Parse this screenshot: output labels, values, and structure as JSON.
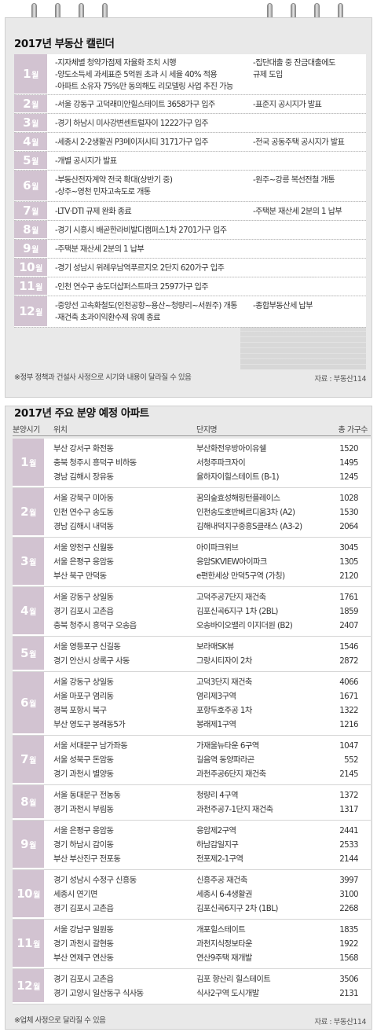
{
  "calendar": {
    "title": "2017년 부동산 캘린더",
    "month_suffix": "월",
    "rows": [
      {
        "month": "1",
        "left": [
          "-지자체별 청약가점제 자율화 조치 시행",
          "-양도소득세 과세표준 5억원 초과 시 세율 40% 적용",
          "-아파트 소유자 75%만 동의해도 리모델링 사업 추진 가능"
        ],
        "right": [
          "-집단대출 중 잔금대출에도",
          "규제 도입"
        ]
      },
      {
        "month": "2",
        "left": [
          "-서울 강동구 고덕래미안힐스테이트 3658가구 입주"
        ],
        "right": [
          "-표준지 공시지가 발표"
        ]
      },
      {
        "month": "3",
        "left": [
          "-경기 하남시 미사강변센트럴자이 1222가구 입주"
        ],
        "right": []
      },
      {
        "month": "4",
        "left": [
          "-세종시 2-2생활권 P3메이저시티 3171가구 입주"
        ],
        "right": [
          "-전국 공동주택 공시지가 발표"
        ]
      },
      {
        "month": "5",
        "left": [
          "-개별 공시지가 발표"
        ],
        "right": []
      },
      {
        "month": "6",
        "left": [
          "-부동산전자계약 전국 확대(상반기 중)",
          "-상주~영천 민자고속도로 개통"
        ],
        "right": [
          "-원주~강릉 복선전철 개통"
        ]
      },
      {
        "month": "7",
        "left": [
          "-LTV·DTI 규제 완화 종료"
        ],
        "right": [
          "-주택분 재산세 2분의 1 납부"
        ]
      },
      {
        "month": "8",
        "left": [
          "-경기 시흥시 배곧한라비발디캠퍼스1차 2701가구 입주"
        ],
        "right": []
      },
      {
        "month": "9",
        "left": [
          "-주택분 재산세 2분의 1 납부"
        ],
        "right": []
      },
      {
        "month": "10",
        "left": [
          "-경기 성남시 위례우남역푸르지오 2단지 620가구 입주"
        ],
        "right": []
      },
      {
        "month": "11",
        "left": [
          "-인천 연수구 송도더샵퍼스트파크 2597가구 입주"
        ],
        "right": []
      },
      {
        "month": "12",
        "left": [
          "-중앙선 고속화철도(인천공항~용산~청량리~서원주) 개통",
          "-재건축 초과이익환수제 유예 종료"
        ],
        "right": [
          "-종합부동산세 납부"
        ]
      }
    ],
    "footnote": "※정부 정책과 건설사 사정으로 시기와 내용이 달라질 수 있음",
    "source": "자료 : 부동산114"
  },
  "apartments": {
    "title": "2017년 주요 분양 예정 아파트",
    "headers": {
      "period": "분양시기",
      "location": "위치",
      "complex": "단지명",
      "units": "총 가구수"
    },
    "month_suffix": "월",
    "groups": [
      {
        "month": "1",
        "rows": [
          {
            "loc": "부산 강서구 화전동",
            "name": "부산화전우방아이유쉘",
            "units": "1520"
          },
          {
            "loc": "충북 청주시 흥덕구 비하동",
            "name": "서청주파크자이",
            "units": "1495"
          },
          {
            "loc": "경남 김해시 장유동",
            "name": "율하자이힐스테이트 (B-1)",
            "units": "1245"
          }
        ]
      },
      {
        "month": "2",
        "rows": [
          {
            "loc": "서울 강북구 미아동",
            "name": "꿈의숲효성해링턴플레이스",
            "units": "1028"
          },
          {
            "loc": "인천 연수구 송도동",
            "name": "인천송도호반베르디움3차 (A2)",
            "units": "1530"
          },
          {
            "loc": "경남 김해시 내덕동",
            "name": "김해내덕지구중흥S클래스 (A3-2)",
            "units": "2064"
          }
        ]
      },
      {
        "month": "3",
        "rows": [
          {
            "loc": "서울 양천구 신월동",
            "name": "아이파크위브",
            "units": "3045"
          },
          {
            "loc": "서울 은평구 응암동",
            "name": "응암SKVIEW아이파크",
            "units": "1305"
          },
          {
            "loc": "부산 북구 만덕동",
            "name": "e편한세상 만덕5구역 (가칭)",
            "units": "2120"
          }
        ]
      },
      {
        "month": "4",
        "rows": [
          {
            "loc": "서울 강동구 상일동",
            "name": "고덕주공7단지 재건축",
            "units": "1761"
          },
          {
            "loc": "경기 김포시 고촌읍",
            "name": "김포신곡6지구 1차 (2BL)",
            "units": "1859"
          },
          {
            "loc": "충북 청주시 흥덕구 오송읍",
            "name": "오송바이오밸리 이지더원 (B2)",
            "units": "2407"
          }
        ]
      },
      {
        "month": "5",
        "rows": [
          {
            "loc": "서울 영등포구 신길동",
            "name": "보라매SK뷰",
            "units": "1546"
          },
          {
            "loc": "경기 안산시 상록구 사동",
            "name": "그랑시티자이 2차",
            "units": "2872"
          }
        ]
      },
      {
        "month": "6",
        "rows": [
          {
            "loc": "서울 강동구 상일동",
            "name": "고덕3단지 재건축",
            "units": "4066"
          },
          {
            "loc": "서울 마포구 염리동",
            "name": "염리제3구역",
            "units": "1671"
          },
          {
            "loc": "경북 포항시 북구",
            "name": "포항두호주공 1차",
            "units": "1322"
          },
          {
            "loc": "부산 영도구 봉래동5가",
            "name": "봉래제1구역",
            "units": "1216"
          }
        ]
      },
      {
        "month": "7",
        "rows": [
          {
            "loc": "서울 서대문구 남가좌동",
            "name": "가재울뉴타운 6구역",
            "units": "1047"
          },
          {
            "loc": "서울 성북구 돈암동",
            "name": "길음역 동양파라곤",
            "units": "552"
          },
          {
            "loc": "경기 과천시 별양동",
            "name": "과천주공6단지 재건축",
            "units": "2145"
          }
        ]
      },
      {
        "month": "8",
        "rows": [
          {
            "loc": "서울 동대문구 전농동",
            "name": "청량리 4구역",
            "units": "1372"
          },
          {
            "loc": "경기 과천시 부림동",
            "name": "과천주공7-1단지 재건축",
            "units": "1317"
          }
        ]
      },
      {
        "month": "9",
        "rows": [
          {
            "loc": "서울 은평구 응암동",
            "name": "응암제2구역",
            "units": "2441"
          },
          {
            "loc": "경기 하남시 감이동",
            "name": "하남감일지구",
            "units": "2533"
          },
          {
            "loc": "부산 부산진구 전포동",
            "name": "전포제2-1구역",
            "units": "2144"
          }
        ]
      },
      {
        "month": "10",
        "rows": [
          {
            "loc": "경기 성남시 수정구 신흥동",
            "name": "신흥주공 재건축",
            "units": "3997"
          },
          {
            "loc": "세종시 연기면",
            "name": "세종시 6-4생활권",
            "units": "3100"
          },
          {
            "loc": "경기 김포시 고촌읍",
            "name": "김포신곡6지구 2차 (1BL)",
            "units": "2268"
          }
        ]
      },
      {
        "month": "11",
        "rows": [
          {
            "loc": "서울 강남구 일원동",
            "name": "개포힐스테이트",
            "units": "1835"
          },
          {
            "loc": "경기 과천시 갈현동",
            "name": "과천지식정보타운",
            "units": "1922"
          },
          {
            "loc": "부산 연제구 연산동",
            "name": "연산9주택 재개발",
            "units": "1568"
          }
        ]
      },
      {
        "month": "12",
        "rows": [
          {
            "loc": "경기 김포시 고촌읍",
            "name": "김포 향산리 힐스테이트",
            "units": "3506"
          },
          {
            "loc": "경기 고양시 일산동구 식사동",
            "name": "식사2구역 도시개발",
            "units": "2131"
          }
        ]
      }
    ],
    "footnote": "※업체 사정으로 달라질 수 있음",
    "source": "자료 : 부동산114"
  },
  "colors": {
    "month_block": "#d2c3d1",
    "panel": "#e9e9e9"
  }
}
